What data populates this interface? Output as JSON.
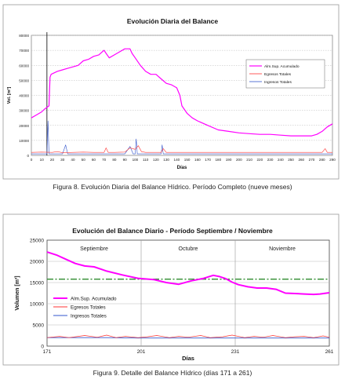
{
  "figure1": {
    "caption": "Figura 8. Evolución Diaria del Balance Hídrico. Período Completo (nueve meses)"
  },
  "figure2": {
    "caption": "Figura 9. Detalle del Balance Hídrico (días 171 a 261)"
  },
  "colors": {
    "almacenamiento": "#ff00ff",
    "egresos": "#ff3333",
    "ingresos": "#3355cc",
    "reference": "#2e8b2e",
    "plot_bg_1": "#ffffff",
    "grid": "#b8b8b8"
  },
  "chart_data": [
    {
      "type": "line",
      "title": "Evolución Diaria del Balance",
      "xlabel": "Días",
      "ylabel": "Vol. [m³]",
      "xlim": [
        0,
        290
      ],
      "ylim": [
        0,
        80000
      ],
      "x_ticks": [
        0,
        10,
        20,
        30,
        40,
        50,
        60,
        70,
        80,
        90,
        100,
        110,
        120,
        130,
        140,
        150,
        160,
        170,
        180,
        190,
        200,
        210,
        220,
        230,
        240,
        250,
        260,
        270,
        280,
        290
      ],
      "y_ticks": [
        0,
        10000,
        20000,
        30000,
        40000,
        50000,
        60000,
        70000,
        80000
      ],
      "grid": true,
      "legend_position": "right",
      "vertical_marker_x": 15,
      "series": [
        {
          "name": "Alm.Sup. Acumulado",
          "x": [
            0,
            5,
            10,
            13,
            15,
            17,
            18,
            19,
            22,
            25,
            30,
            35,
            40,
            45,
            50,
            55,
            60,
            65,
            70,
            72,
            75,
            80,
            85,
            90,
            95,
            97,
            100,
            105,
            110,
            115,
            120,
            125,
            130,
            135,
            140,
            143,
            145,
            150,
            155,
            160,
            170,
            180,
            190,
            200,
            210,
            220,
            230,
            240,
            250,
            260,
            270,
            275,
            280,
            285,
            290
          ],
          "values": [
            25000,
            27000,
            29000,
            31000,
            32000,
            33000,
            52000,
            54000,
            55000,
            56000,
            57000,
            58000,
            59000,
            60000,
            63000,
            64000,
            66000,
            67000,
            70000,
            68000,
            65000,
            67000,
            69000,
            71000,
            71000,
            68000,
            65000,
            60000,
            56000,
            54000,
            54000,
            51000,
            48000,
            47000,
            45000,
            40000,
            33000,
            28000,
            25000,
            23000,
            20000,
            17000,
            16000,
            15000,
            14500,
            14000,
            14000,
            13500,
            13000,
            13000,
            13000,
            14000,
            16000,
            19000,
            21000
          ]
        },
        {
          "name": "Egresos Totales",
          "x": [
            0,
            10,
            20,
            25,
            30,
            40,
            50,
            60,
            70,
            72,
            74,
            80,
            90,
            95,
            100,
            103,
            106,
            110,
            120,
            125,
            127,
            130,
            140,
            150,
            160,
            170,
            180,
            190,
            200,
            210,
            220,
            230,
            240,
            250,
            260,
            270,
            280,
            283,
            285,
            290
          ],
          "values": [
            2000,
            2200,
            2000,
            2500,
            1800,
            2000,
            2200,
            2000,
            2000,
            5000,
            2000,
            2000,
            2200,
            5000,
            4000,
            6500,
            2500,
            2000,
            2000,
            2000,
            4500,
            2000,
            2000,
            2000,
            2000,
            2000,
            2000,
            2000,
            2000,
            2000,
            2000,
            2000,
            2000,
            2000,
            2000,
            2000,
            2000,
            4500,
            2000,
            2000
          ]
        },
        {
          "name": "Ingresos Totales",
          "x": [
            0,
            10,
            15,
            16,
            17,
            18,
            20,
            30,
            33,
            35,
            40,
            50,
            60,
            80,
            90,
            95,
            98,
            100,
            101,
            102,
            105,
            110,
            120,
            125,
            126,
            127,
            130,
            140,
            150,
            160,
            170,
            180,
            190,
            200,
            210,
            220,
            230,
            240,
            250,
            260,
            270,
            280,
            290
          ],
          "values": [
            1000,
            1000,
            1000,
            23000,
            1000,
            1000,
            1000,
            1000,
            7000,
            1000,
            1000,
            1000,
            1000,
            1000,
            1000,
            6000,
            1000,
            1000,
            11000,
            1000,
            1000,
            1000,
            1000,
            1000,
            7000,
            1000,
            1000,
            1000,
            1000,
            1000,
            1000,
            1000,
            1000,
            1000,
            1000,
            1000,
            1000,
            1000,
            1000,
            1000,
            1000,
            1000,
            1000
          ]
        }
      ]
    },
    {
      "type": "line",
      "title": "Evolución del Balance Diario - Período Septiembre / Noviembre",
      "xlabel": "Días",
      "ylabel": "Volumen [m³]",
      "xlim": [
        171,
        261
      ],
      "ylim": [
        0,
        25000
      ],
      "x_ticks": [
        171,
        201,
        231,
        261
      ],
      "y_ticks": [
        0,
        5000,
        10000,
        15000,
        20000,
        25000
      ],
      "month_labels": [
        "Septiembre",
        "Octubre",
        "Noviembre"
      ],
      "grid": true,
      "legend_position": "bottom-left",
      "reference_line_y": 15800,
      "series": [
        {
          "name": "Alm.Sup. Acumulado",
          "x": [
            171,
            174,
            177,
            180,
            183,
            186,
            190,
            195,
            200,
            205,
            209,
            213,
            217,
            221,
            224,
            226,
            228,
            230,
            232,
            235,
            238,
            241,
            244,
            247,
            250,
            253,
            256,
            258,
            261
          ],
          "values": [
            22200,
            21500,
            20500,
            19500,
            18900,
            18700,
            17700,
            16800,
            16000,
            15700,
            15000,
            14600,
            15400,
            16000,
            16700,
            16400,
            15900,
            15100,
            14500,
            14000,
            13700,
            13700,
            13400,
            12500,
            12400,
            12300,
            12200,
            12300,
            12600
          ]
        },
        {
          "name": "Egresos Totales",
          "x": [
            171,
            175,
            178,
            180,
            183,
            187,
            190,
            193,
            196,
            200,
            203,
            206,
            210,
            213,
            216,
            220,
            223,
            227,
            230,
            234,
            237,
            240,
            243,
            247,
            250,
            253,
            256,
            259,
            261
          ],
          "values": [
            2000,
            2300,
            2000,
            2200,
            2500,
            2100,
            2600,
            2000,
            2300,
            2000,
            2200,
            2500,
            2000,
            2300,
            2100,
            2500,
            2000,
            2200,
            2600,
            2000,
            2300,
            2100,
            2500,
            2000,
            2200,
            2300,
            2000,
            2400,
            2100
          ]
        },
        {
          "name": "Ingresos Totales",
          "x": [
            171,
            180,
            190,
            200,
            210,
            220,
            230,
            240,
            250,
            261
          ],
          "values": [
            2000,
            2000,
            2000,
            1900,
            1900,
            1900,
            1900,
            1900,
            1900,
            1900
          ]
        }
      ]
    }
  ],
  "legend2_sample_labels": [
    "Alm.Sup. Acumulado",
    "Egresos Totales",
    "Ingresos Totales"
  ]
}
